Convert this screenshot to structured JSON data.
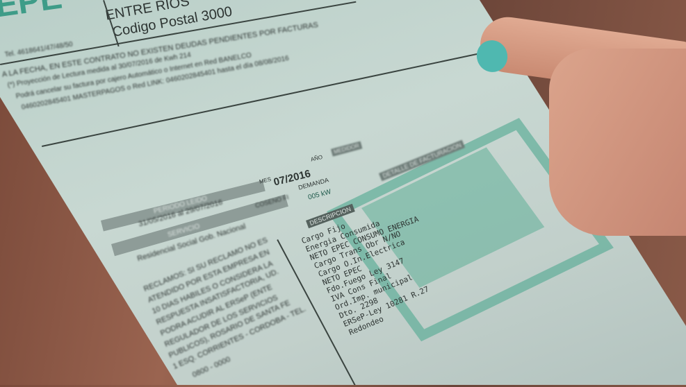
{
  "bill": {
    "header": {
      "company": "EPE",
      "province": "ENTRE RIOS",
      "postal": "Codigo Postal 3000",
      "phone": "Tel. 4618641/47/48/50"
    },
    "notice": [
      "A LA FECHA, EN ESTE CONTRATO NO EXISTEN DEUDAS PENDIENTES POR FACTURAS",
      "(*) Proyección de Lectura medida al 30/07/2016 de Kwh 214",
      "Podrá cancelar su factura por cajero Automático o Internet en Red BANELCO",
      "0460202845401 MASTERPAGOS o Red LINK: 0460202845401 hasta el día 08/08/2016"
    ],
    "period_label": "PERIODO LEIDO",
    "period_value": "31/05/2016 al 29/07/2016",
    "service_label": "SERVICIO",
    "service_value": "Residencial Social Gob. Nacional",
    "month_label": "MES",
    "month_value": "07/2016",
    "year_label": "AÑO",
    "coseno_label": "COSENO FI",
    "demand_label": "DEMANDA",
    "demand_value": "005 kW",
    "meter_label": "MEDIDOR",
    "detail_label": "DETALLE DE FACTURACION",
    "description_label": "DESCRIPCION",
    "items": [
      "Cargo Fijo",
      "Energia Consumida",
      "NETO EPEC CONSUMO ENERGIA",
      "Cargo Trans Obr N/NO",
      "Cargo O.In.Electrica",
      "NETO EPEC",
      "Fdo.Fuego Ley 3147",
      "IVA Cons Final",
      "Ord.Imp. municipal",
      "Dto. 2298",
      "ERSeP-Ley 10281 R.27",
      "Redondeo"
    ],
    "claims": [
      "RECLAMOS: SI SU RECLAMO NO ES",
      "ATENDIDO POR ESTA EMPRESA EN",
      "10 DIAS HABILES O CONSIDERA LA",
      "RESPUESTA INSATISFACTORIA, UD.",
      "PODRA ACUDIR AL ERSeP (ENTE",
      "REGULADOR DE LOS SERVICIOS",
      "PUBLICOS), ROSARIO DE SANTA FE",
      "1 ESQ. CORRIENTES - CORDOBA - TEL.",
      "0800 - 0000"
    ]
  },
  "colors": {
    "paper": "#c2d3cd",
    "ink": "#2d3432",
    "teal": "#5fae98",
    "nail": "#4fb8b0",
    "skin": "#d8a088"
  }
}
